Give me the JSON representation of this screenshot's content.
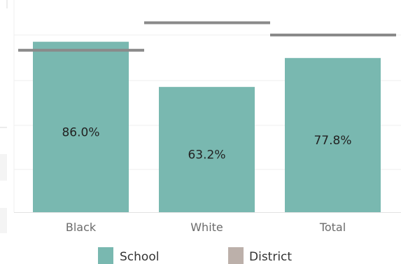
{
  "chart_data": {
    "type": "bar",
    "categories": [
      "Black",
      "White",
      "Total"
    ],
    "series": [
      {
        "name": "School",
        "values": [
          86.0,
          63.2,
          77.8
        ],
        "labels": [
          "86.0%",
          "63.2%",
          "77.8%"
        ],
        "color": "#79b8b0"
      },
      {
        "name": "District",
        "values": [
          81.7,
          95.6,
          89.4
        ],
        "color": "#bcb0aa",
        "line_color": "#8a8a8a"
      }
    ],
    "ylim": [
      0,
      100
    ],
    "grid": true,
    "legend_position": "bottom",
    "xlabel": "",
    "ylabel": ""
  }
}
